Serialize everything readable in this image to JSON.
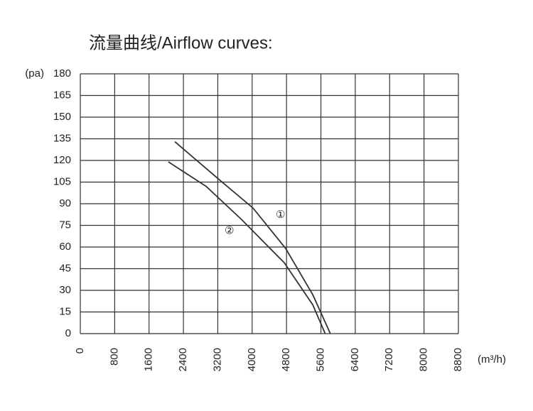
{
  "chart_data": {
    "type": "line",
    "title": "流量曲线/Airflow curves:",
    "y_label": "(pa)",
    "x_label": "(m³/h)",
    "xlim": [
      0,
      8800
    ],
    "xticks": [
      0,
      800,
      1600,
      2400,
      3200,
      4000,
      4800,
      5600,
      6400,
      7200,
      8000,
      8800
    ],
    "ylim": [
      0,
      180
    ],
    "yticks": [
      0,
      15,
      30,
      45,
      60,
      75,
      90,
      105,
      120,
      135,
      150,
      165,
      180
    ],
    "grid": true,
    "series": [
      {
        "name": "①",
        "color": "#333333",
        "x": [
          2200,
          3260,
          4020,
          4780,
          5410,
          5820
        ],
        "values": [
          133,
          106,
          87,
          59,
          27,
          0
        ]
      },
      {
        "name": "②",
        "color": "#333333",
        "x": [
          2050,
          2930,
          3755,
          4750,
          5410,
          5700
        ],
        "values": [
          119,
          102,
          79,
          49,
          20,
          0
        ]
      }
    ]
  }
}
